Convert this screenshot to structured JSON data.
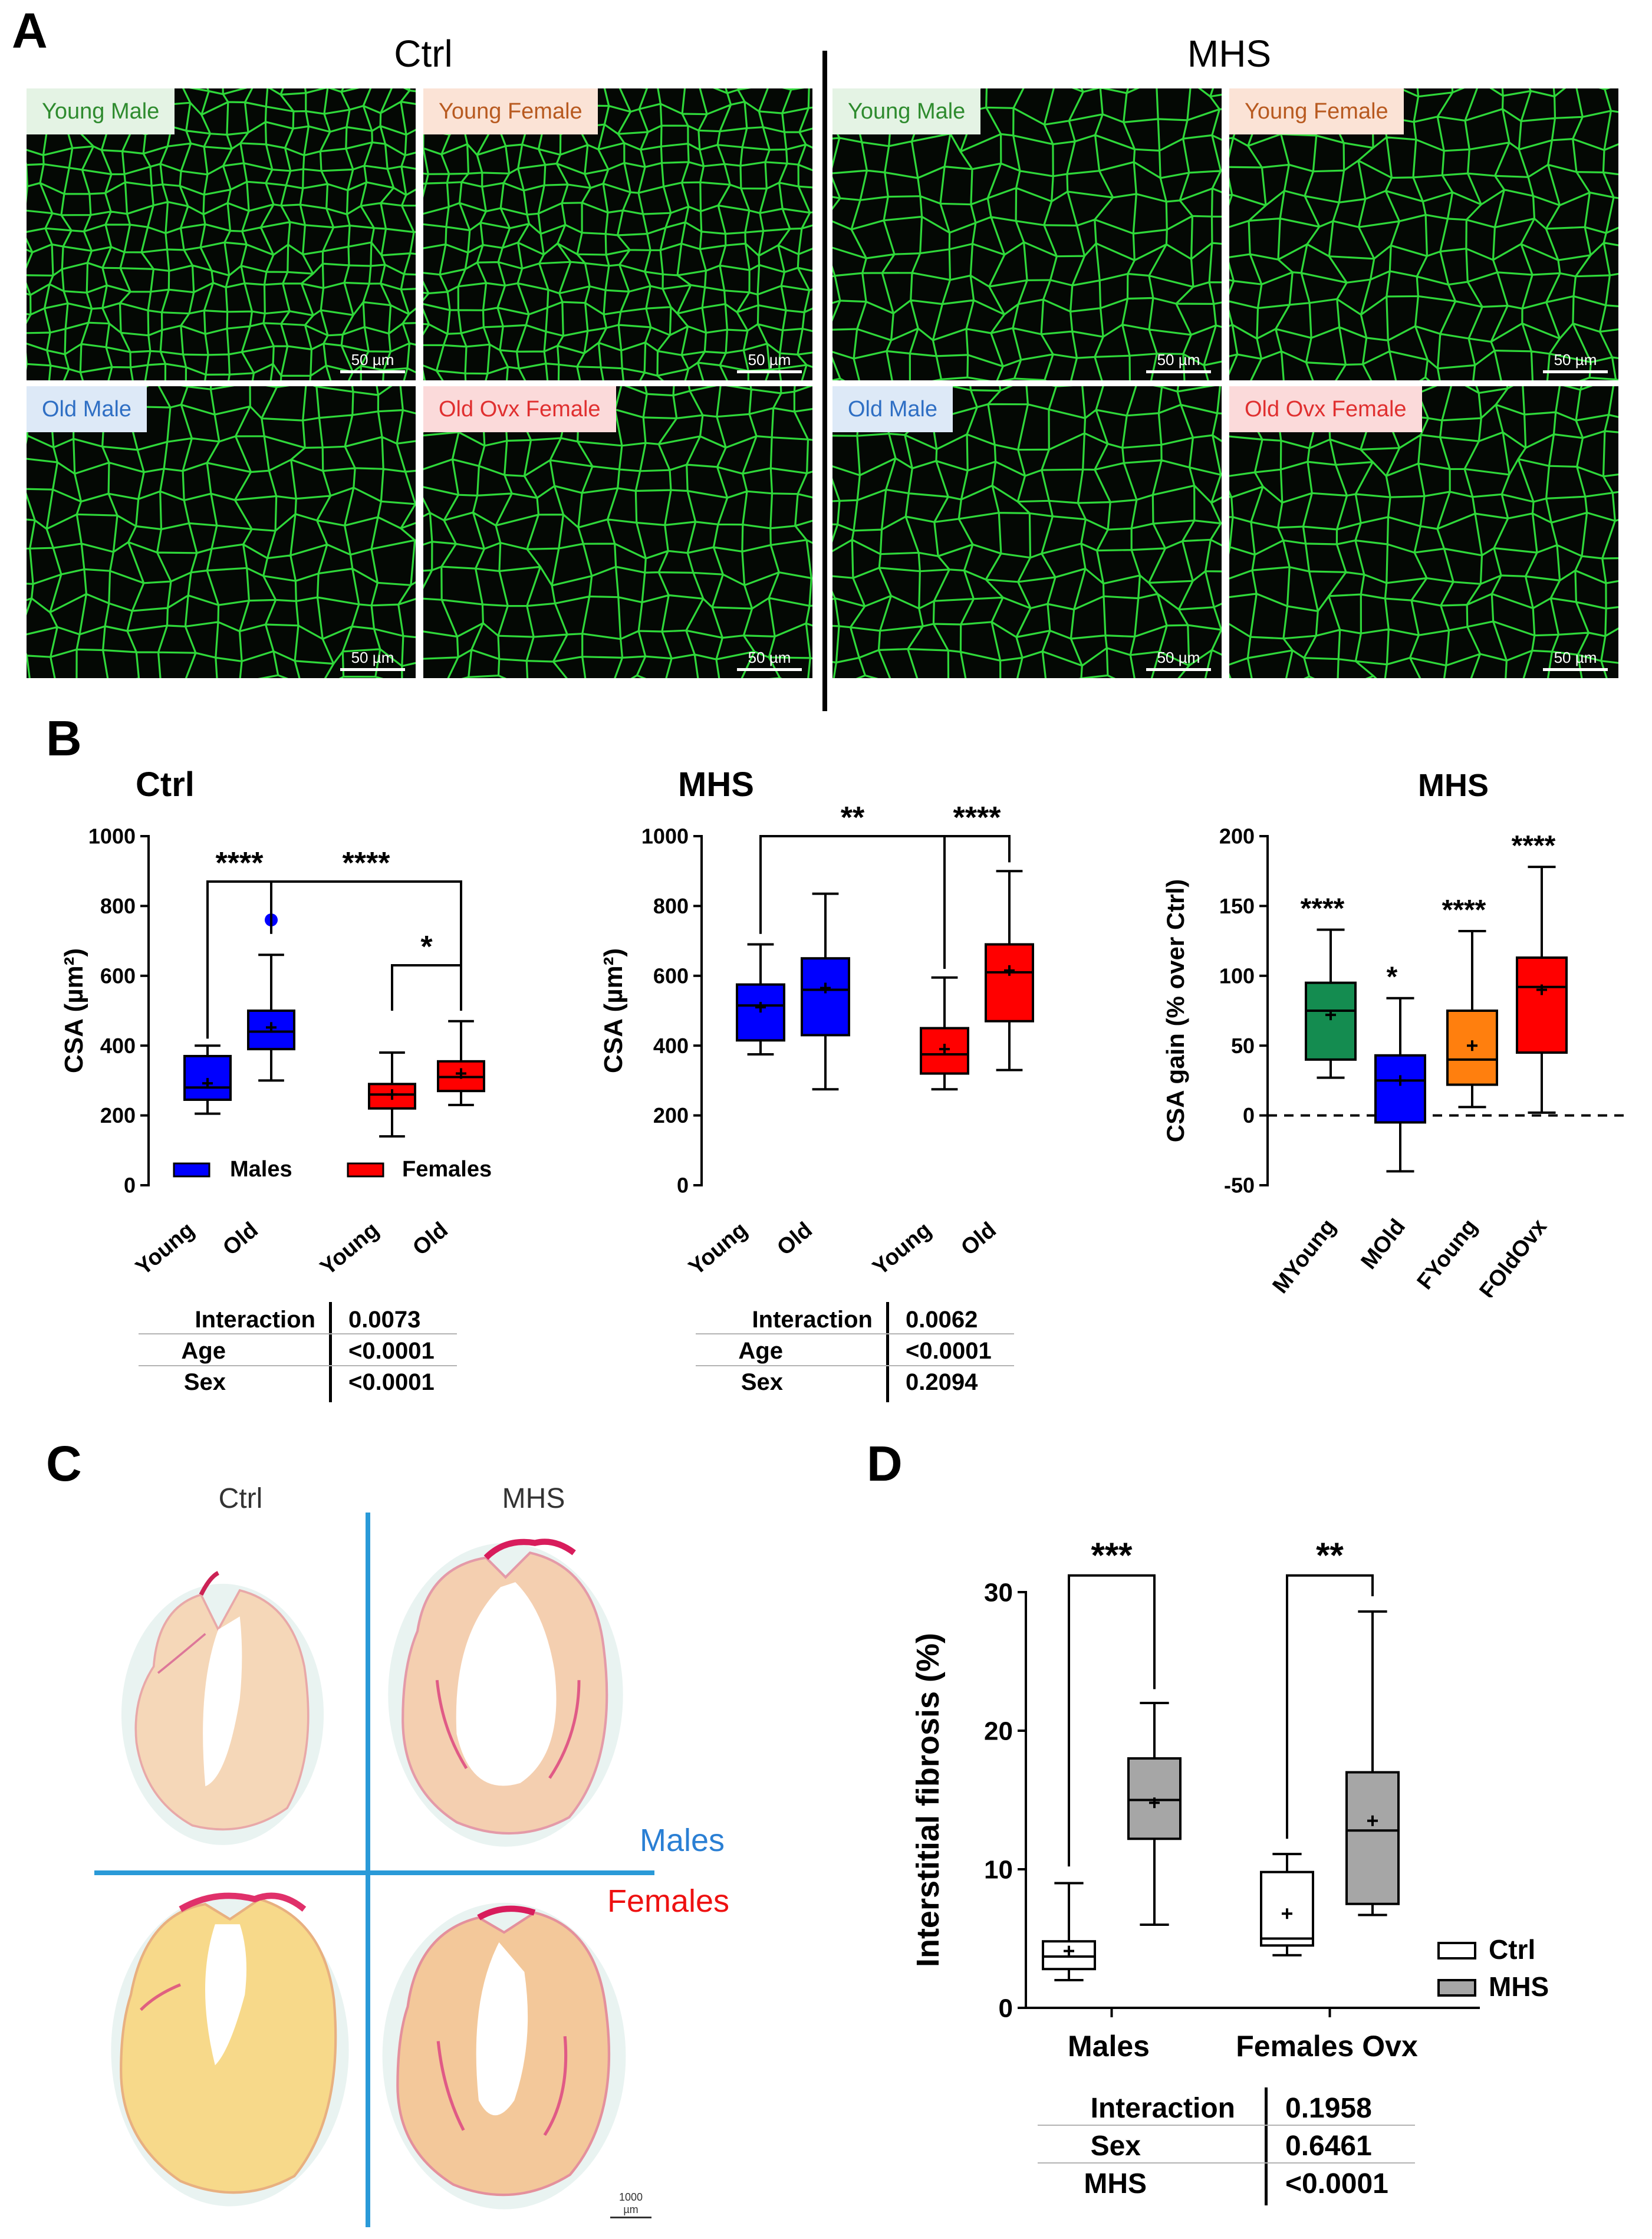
{
  "colors": {
    "male": "#0000ff",
    "female": "#ff0000",
    "ctrl_box": "#ffffff",
    "mhs_box": "#a6a6a6",
    "green": "#148c50",
    "orange": "#ff7f0e",
    "separator": "#2a9ad8"
  },
  "panelA": {
    "label": "A",
    "groups": [
      {
        "title": "Ctrl"
      },
      {
        "title": "MHS"
      }
    ],
    "images": [
      {
        "label": "Young Male",
        "scale": "50 µm",
        "chip_bg": "#e4f3e4",
        "chip_fg": "#2e8b2e"
      },
      {
        "label": "Young Female",
        "scale": "50 µm",
        "chip_bg": "#fbe3d6",
        "chip_fg": "#b85a20"
      },
      {
        "label": "Young Male",
        "scale": "50 µm",
        "chip_bg": "#e4f3e4",
        "chip_fg": "#2e8b2e"
      },
      {
        "label": "Young Female",
        "scale": "50 µm",
        "chip_bg": "#fbe3d6",
        "chip_fg": "#b85a20"
      },
      {
        "label": "Old Male",
        "scale": "50 µm",
        "chip_bg": "#dde9f7",
        "chip_fg": "#2f6fc4"
      },
      {
        "label": "Old Ovx Female",
        "scale": "50 µm",
        "chip_bg": "#fbdada",
        "chip_fg": "#e03030"
      },
      {
        "label": "Old Male",
        "scale": "50 µm",
        "chip_bg": "#dde9f7",
        "chip_fg": "#2f6fc4"
      },
      {
        "label": "Old Ovx Female",
        "scale": "50 µm",
        "chip_bg": "#fbdada",
        "chip_fg": "#e03030"
      }
    ]
  },
  "panelB": {
    "label": "B"
  },
  "panelC": {
    "label": "C",
    "ctrl_label": "Ctrl",
    "mhs_label": "MHS",
    "males_label": "Males",
    "females_label": "Females",
    "scale": "1000 µm"
  },
  "panelD": {
    "label": "D"
  },
  "chart_data": [
    {
      "id": "b1",
      "type": "box",
      "title": "Ctrl",
      "ylabel": "CSA (µm²)",
      "ylim": [
        0,
        1000
      ],
      "yticks": [
        0,
        200,
        400,
        600,
        800,
        1000
      ],
      "categories": [
        "Young",
        "Old",
        "Young",
        "Old"
      ],
      "boxes": [
        {
          "group": "Males",
          "min": 205,
          "q1": 245,
          "median": 280,
          "q3": 370,
          "max": 400,
          "mean": 292
        },
        {
          "group": "Males",
          "min": 300,
          "q1": 390,
          "median": 440,
          "q3": 500,
          "max": 660,
          "mean": 452,
          "outliers": [
            760
          ]
        },
        {
          "group": "Females",
          "min": 140,
          "q1": 220,
          "median": 260,
          "q3": 290,
          "max": 380,
          "mean": 260
        },
        {
          "group": "Females",
          "min": 230,
          "q1": 270,
          "median": 310,
          "q3": 355,
          "max": 470,
          "mean": 320
        }
      ],
      "legend": [
        {
          "name": "Males",
          "color": "#0000ff"
        },
        {
          "name": "Females",
          "color": "#ff0000"
        }
      ],
      "significance": [
        {
          "from": 0,
          "to": 1,
          "label": "****"
        },
        {
          "from": 1,
          "to": 3,
          "label": "****"
        },
        {
          "from": 2,
          "to": 3,
          "label": "*"
        }
      ],
      "stats": [
        {
          "name": "Interaction",
          "value": "0.0073"
        },
        {
          "name": "Age",
          "value": "<0.0001"
        },
        {
          "name": "Sex",
          "value": "<0.0001"
        }
      ]
    },
    {
      "id": "b2",
      "type": "box",
      "title": "MHS",
      "ylabel": "CSA (µm²)",
      "ylim": [
        0,
        1000
      ],
      "yticks": [
        0,
        200,
        400,
        600,
        800,
        1000
      ],
      "categories": [
        "Young",
        "Old",
        "Young",
        "Old"
      ],
      "boxes": [
        {
          "group": "Males",
          "min": 375,
          "q1": 415,
          "median": 515,
          "q3": 575,
          "max": 690,
          "mean": 510
        },
        {
          "group": "Males",
          "min": 275,
          "q1": 430,
          "median": 560,
          "q3": 650,
          "max": 835,
          "mean": 565
        },
        {
          "group": "Females",
          "min": 275,
          "q1": 320,
          "median": 375,
          "q3": 450,
          "max": 595,
          "mean": 390
        },
        {
          "group": "Females",
          "min": 330,
          "q1": 470,
          "median": 610,
          "q3": 690,
          "max": 900,
          "mean": 615
        }
      ],
      "significance": [
        {
          "from": 0,
          "to": 2,
          "label": "**"
        },
        {
          "from": 2,
          "to": 3,
          "label": "****"
        }
      ],
      "stats": [
        {
          "name": "Interaction",
          "value": "0.0062"
        },
        {
          "name": "Age",
          "value": "<0.0001"
        },
        {
          "name": "Sex",
          "value": "0.2094"
        }
      ]
    },
    {
      "id": "b3",
      "type": "box",
      "title": "MHS",
      "ylabel": "CSA gain (% over Ctrl)",
      "ylim": [
        -50,
        200
      ],
      "yticks": [
        -50,
        0,
        50,
        100,
        150,
        200
      ],
      "categories": [
        "MYoung",
        "MOld",
        "FYoung",
        "FOldOvx"
      ],
      "boxes": [
        {
          "min": 27,
          "q1": 40,
          "median": 75,
          "q3": 95,
          "max": 133,
          "mean": 72,
          "color": "#148c50"
        },
        {
          "min": -40,
          "q1": -5,
          "median": 25,
          "q3": 43,
          "max": 84,
          "mean": 25,
          "color": "#0000ff"
        },
        {
          "min": 6,
          "q1": 22,
          "median": 40,
          "q3": 75,
          "max": 132,
          "mean": 50,
          "color": "#ff7f0e"
        },
        {
          "min": 2,
          "q1": 45,
          "median": 92,
          "q3": 113,
          "max": 178,
          "mean": 90,
          "color": "#ff0000"
        }
      ],
      "stars": [
        "****",
        "*",
        "****",
        "****"
      ],
      "refline": 0
    },
    {
      "id": "d",
      "type": "box",
      "ylabel": "Interstitial fibrosis (%)",
      "ylim": [
        0,
        30
      ],
      "yticks": [
        0,
        10,
        20,
        30
      ],
      "categories": [
        "Males",
        "Females Ovx"
      ],
      "series": [
        {
          "name": "Ctrl",
          "color": "#ffffff"
        },
        {
          "name": "MHS",
          "color": "#a6a6a6"
        }
      ],
      "boxes": [
        {
          "cat": 0,
          "series": "Ctrl",
          "min": 2,
          "q1": 2.8,
          "median": 3.7,
          "q3": 4.8,
          "max": 9,
          "mean": 4.1
        },
        {
          "cat": 0,
          "series": "MHS",
          "min": 6,
          "q1": 12.2,
          "median": 15,
          "q3": 18,
          "max": 22,
          "mean": 14.8
        },
        {
          "cat": 1,
          "series": "Ctrl",
          "min": 3.8,
          "q1": 4.5,
          "median": 5,
          "q3": 9.8,
          "max": 11.1,
          "mean": 6.8
        },
        {
          "cat": 1,
          "series": "MHS",
          "min": 6.7,
          "q1": 7.5,
          "median": 12.8,
          "q3": 17,
          "max": 28.6,
          "mean": 13.5
        }
      ],
      "significance": [
        {
          "cat": 0,
          "label": "***"
        },
        {
          "cat": 1,
          "label": "**"
        }
      ],
      "stats": [
        {
          "name": "Interaction",
          "value": "0.1958"
        },
        {
          "name": "Sex",
          "value": "0.6461"
        },
        {
          "name": "MHS",
          "value": "<0.0001"
        }
      ]
    }
  ]
}
